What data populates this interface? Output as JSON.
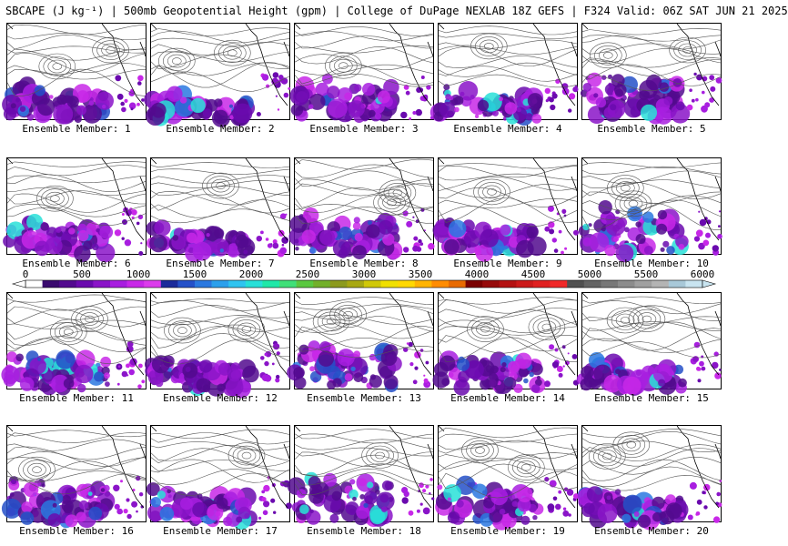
{
  "header": {
    "title": "SBCAPE (J kg⁻¹) | 500mb Geopotential Height (gpm) | College of DuPage NEXLAB 18Z GEFS | F324 Valid: 06Z SAT JUN 21 2025"
  },
  "colorbar": {
    "ticks": [
      "0",
      "500",
      "1000",
      "1500",
      "2000",
      "2500",
      "3000",
      "3500",
      "4000",
      "4500",
      "5000",
      "5500",
      "6000"
    ],
    "colors": [
      "#ffffff",
      "#3a0a6e",
      "#520a8e",
      "#6a0aae",
      "#8a14c8",
      "#a81ee0",
      "#c828e8",
      "#dc3cec",
      "#1a2a9a",
      "#2450c8",
      "#2a78e0",
      "#2ca0ec",
      "#30c4f0",
      "#28e0d8",
      "#20e8a8",
      "#40e078",
      "#5ac840",
      "#72b02a",
      "#8c9a1e",
      "#a8a812",
      "#d0c808",
      "#f0e000",
      "#ffd800",
      "#ffb400",
      "#ff8c00",
      "#e86a00",
      "#7a0000",
      "#960a0a",
      "#b41212",
      "#cc1a1a",
      "#e02020",
      "#f02828",
      "#505050",
      "#646464",
      "#787878",
      "#8c8c8c",
      "#a0a0a0",
      "#b4b4b4",
      "#a8c8d8",
      "#c8e4f0"
    ]
  },
  "members": [
    {
      "label": "Ensemble Member: 1"
    },
    {
      "label": "Ensemble Member: 2"
    },
    {
      "label": "Ensemble Member: 3"
    },
    {
      "label": "Ensemble Member: 4"
    },
    {
      "label": "Ensemble Member: 5"
    },
    {
      "label": "Ensemble Member: 6"
    },
    {
      "label": "Ensemble Member: 7"
    },
    {
      "label": "Ensemble Member: 8"
    },
    {
      "label": "Ensemble Member: 9"
    },
    {
      "label": "Ensemble Member: 10"
    },
    {
      "label": "Ensemble Member: 11"
    },
    {
      "label": "Ensemble Member: 12"
    },
    {
      "label": "Ensemble Member: 13"
    },
    {
      "label": "Ensemble Member: 14"
    },
    {
      "label": "Ensemble Member: 15"
    },
    {
      "label": "Ensemble Member: 16"
    },
    {
      "label": "Ensemble Member: 17"
    },
    {
      "label": "Ensemble Member: 18"
    },
    {
      "label": "Ensemble Member: 19"
    },
    {
      "label": "Ensemble Member: 20"
    }
  ]
}
